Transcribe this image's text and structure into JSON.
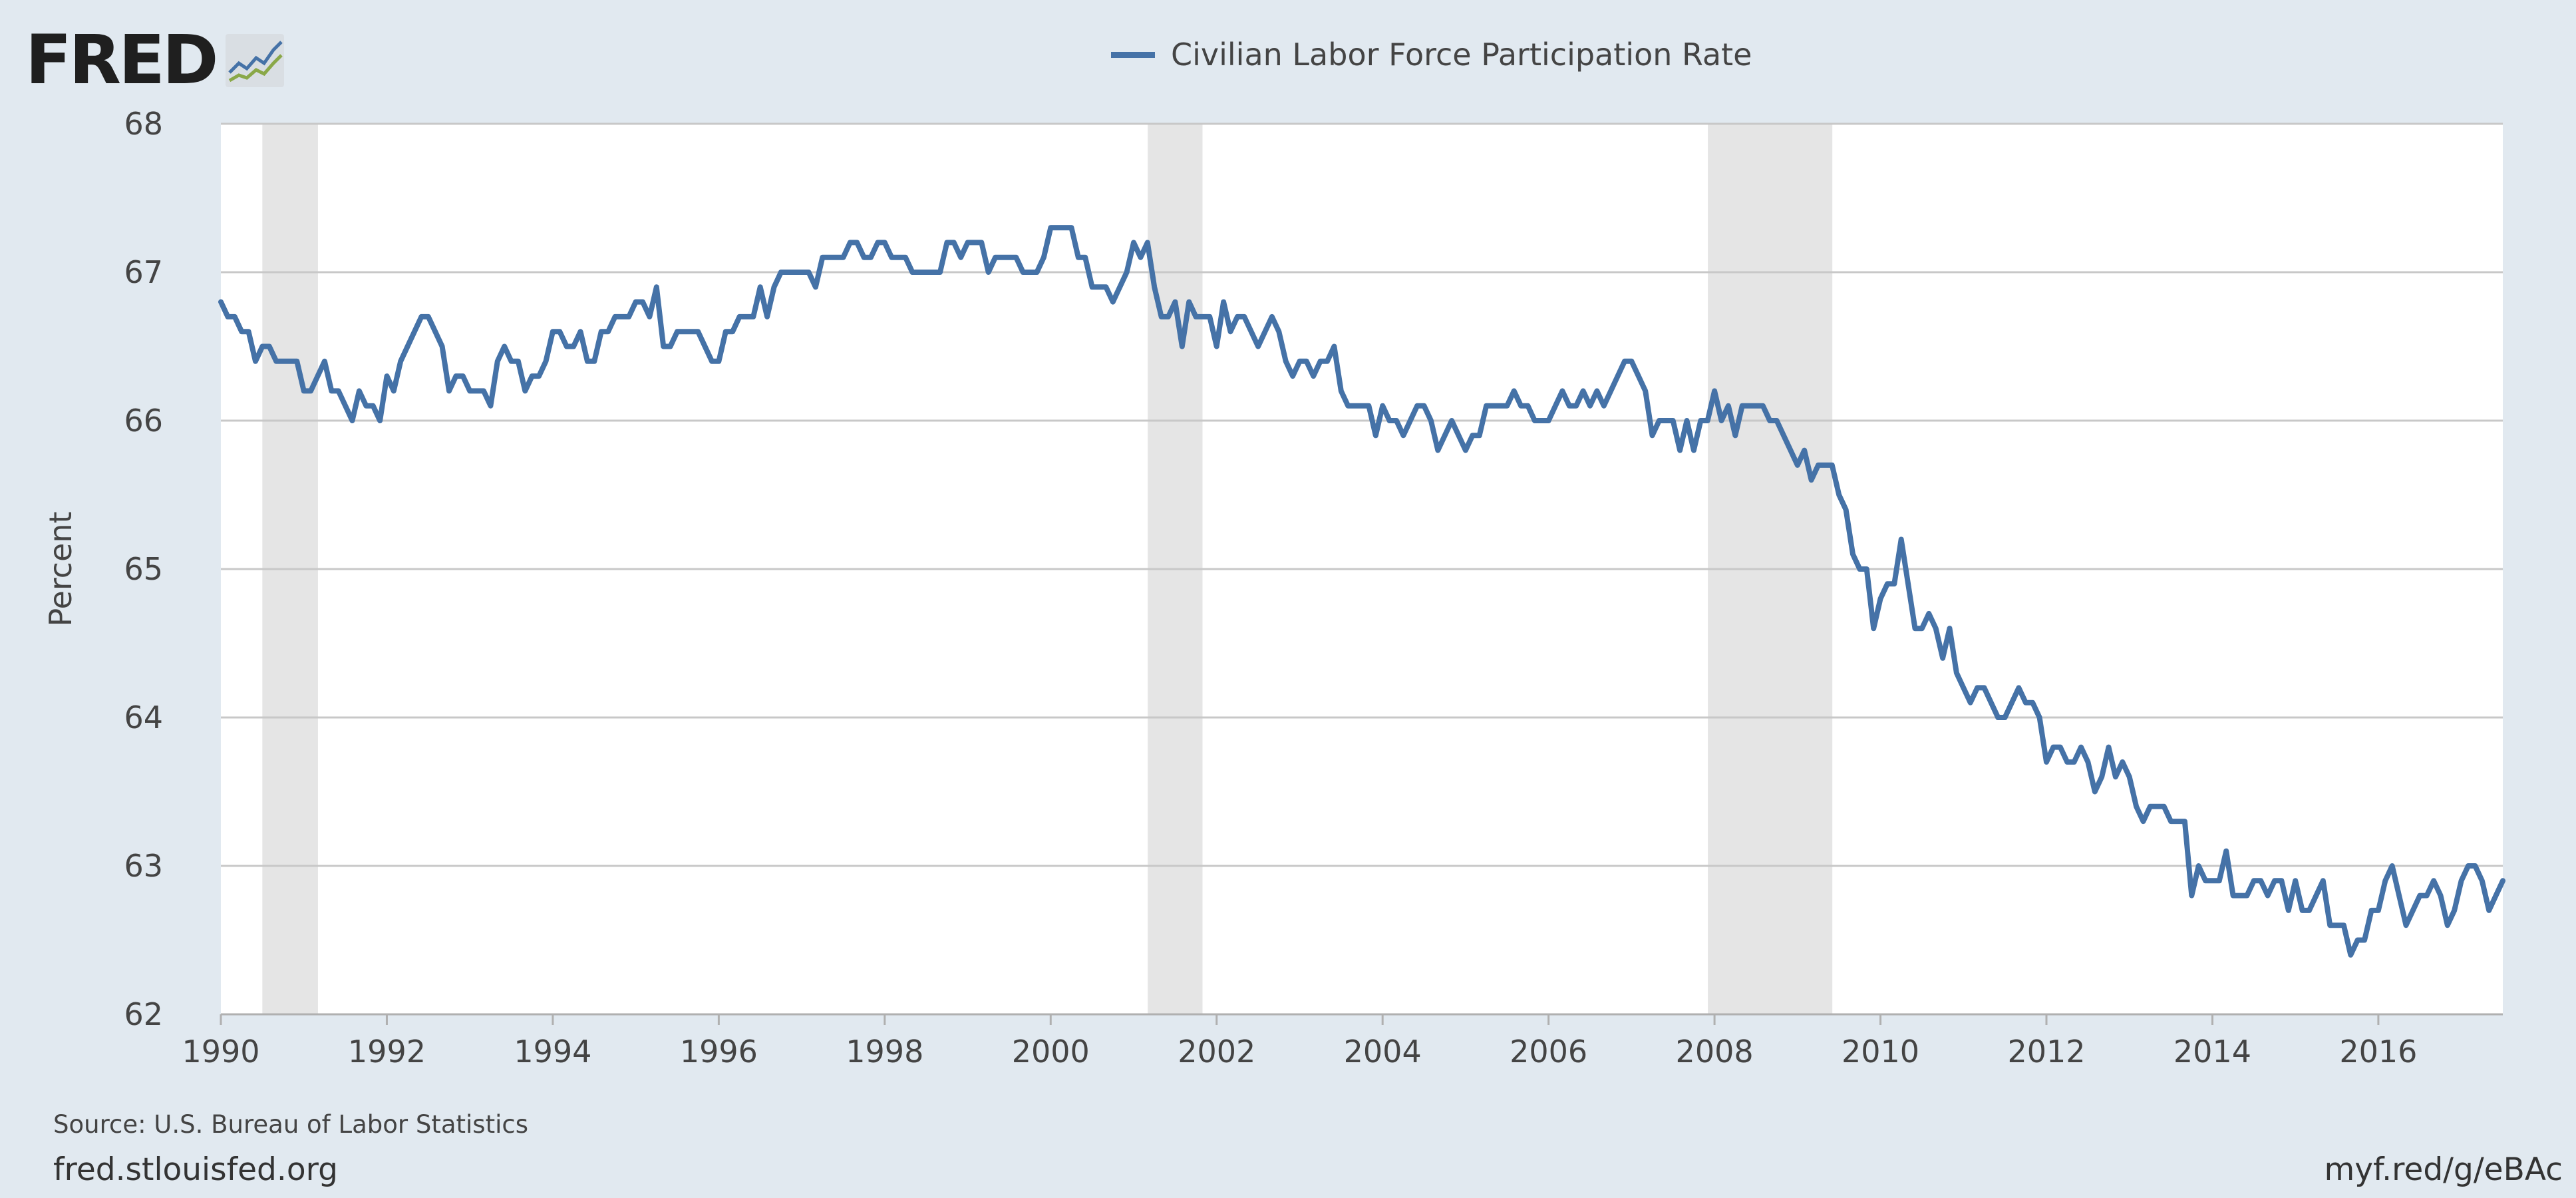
{
  "logo": {
    "text": "FRED"
  },
  "footer": {
    "source": "Source: U.S. Bureau of Labor Statistics",
    "site": "fred.stlouisfed.org",
    "short_url": "myf.red/g/eBAc"
  },
  "colors": {
    "background": "#e1e9f0",
    "series": "#4572a7",
    "recession": "#e5e5e5",
    "grid": "#c8c8c8"
  },
  "chart_data": {
    "type": "line",
    "title": "",
    "xlabel": "",
    "ylabel": "Percent",
    "xlim": [
      1990.0,
      2017.5
    ],
    "ylim": [
      62,
      68
    ],
    "y_ticks": [
      62,
      63,
      64,
      65,
      66,
      67,
      68
    ],
    "x_ticks": [
      1990,
      1992,
      1994,
      1996,
      1998,
      2000,
      2002,
      2004,
      2006,
      2008,
      2010,
      2012,
      2014,
      2016
    ],
    "grid": true,
    "legend": "top-center",
    "recessions": [
      [
        1990.5,
        1991.17
      ],
      [
        2001.17,
        2001.83
      ],
      [
        2007.92,
        2009.42
      ]
    ],
    "series": [
      {
        "name": "Civilian Labor Force Participation Rate",
        "start": "1990-01",
        "frequency": "monthly",
        "values": [
          66.8,
          66.7,
          66.7,
          66.6,
          66.6,
          66.4,
          66.5,
          66.5,
          66.4,
          66.4,
          66.4,
          66.4,
          66.2,
          66.2,
          66.3,
          66.4,
          66.2,
          66.2,
          66.1,
          66.0,
          66.2,
          66.1,
          66.1,
          66.0,
          66.3,
          66.2,
          66.4,
          66.5,
          66.6,
          66.7,
          66.7,
          66.6,
          66.5,
          66.2,
          66.3,
          66.3,
          66.2,
          66.2,
          66.2,
          66.1,
          66.4,
          66.5,
          66.4,
          66.4,
          66.2,
          66.3,
          66.3,
          66.4,
          66.6,
          66.6,
          66.5,
          66.5,
          66.6,
          66.4,
          66.4,
          66.6,
          66.6,
          66.7,
          66.7,
          66.7,
          66.8,
          66.8,
          66.7,
          66.9,
          66.5,
          66.5,
          66.6,
          66.6,
          66.6,
          66.6,
          66.5,
          66.4,
          66.4,
          66.6,
          66.6,
          66.7,
          66.7,
          66.7,
          66.9,
          66.7,
          66.9,
          67.0,
          67.0,
          67.0,
          67.0,
          67.0,
          66.9,
          67.1,
          67.1,
          67.1,
          67.1,
          67.2,
          67.2,
          67.1,
          67.1,
          67.2,
          67.2,
          67.1,
          67.1,
          67.1,
          67.0,
          67.0,
          67.0,
          67.0,
          67.0,
          67.2,
          67.2,
          67.1,
          67.2,
          67.2,
          67.2,
          67.0,
          67.1,
          67.1,
          67.1,
          67.1,
          67.0,
          67.0,
          67.0,
          67.1,
          67.3,
          67.3,
          67.3,
          67.3,
          67.1,
          67.1,
          66.9,
          66.9,
          66.9,
          66.8,
          66.9,
          67.0,
          67.2,
          67.1,
          67.2,
          66.9,
          66.7,
          66.7,
          66.8,
          66.5,
          66.8,
          66.7,
          66.7,
          66.7,
          66.5,
          66.8,
          66.6,
          66.7,
          66.7,
          66.6,
          66.5,
          66.6,
          66.7,
          66.6,
          66.4,
          66.3,
          66.4,
          66.4,
          66.3,
          66.4,
          66.4,
          66.5,
          66.2,
          66.1,
          66.1,
          66.1,
          66.1,
          65.9,
          66.1,
          66.0,
          66.0,
          65.9,
          66.0,
          66.1,
          66.1,
          66.0,
          65.8,
          65.9,
          66.0,
          65.9,
          65.8,
          65.9,
          65.9,
          66.1,
          66.1,
          66.1,
          66.1,
          66.2,
          66.1,
          66.1,
          66.0,
          66.0,
          66.0,
          66.1,
          66.2,
          66.1,
          66.1,
          66.2,
          66.1,
          66.2,
          66.1,
          66.2,
          66.3,
          66.4,
          66.4,
          66.3,
          66.2,
          65.9,
          66.0,
          66.0,
          66.0,
          65.8,
          66.0,
          65.8,
          66.0,
          66.0,
          66.2,
          66.0,
          66.1,
          65.9,
          66.1,
          66.1,
          66.1,
          66.1,
          66.0,
          66.0,
          65.9,
          65.8,
          65.7,
          65.8,
          65.6,
          65.7,
          65.7,
          65.7,
          65.5,
          65.4,
          65.1,
          65.0,
          65.0,
          64.6,
          64.8,
          64.9,
          64.9,
          65.2,
          64.9,
          64.6,
          64.6,
          64.7,
          64.6,
          64.4,
          64.6,
          64.3,
          64.2,
          64.1,
          64.2,
          64.2,
          64.1,
          64.0,
          64.0,
          64.1,
          64.2,
          64.1,
          64.1,
          64.0,
          63.7,
          63.8,
          63.8,
          63.7,
          63.7,
          63.8,
          63.7,
          63.5,
          63.6,
          63.8,
          63.6,
          63.7,
          63.6,
          63.4,
          63.3,
          63.4,
          63.4,
          63.4,
          63.3,
          63.3,
          63.3,
          62.8,
          63.0,
          62.9,
          62.9,
          62.9,
          63.1,
          62.8,
          62.8,
          62.8,
          62.9,
          62.9,
          62.8,
          62.9,
          62.9,
          62.7,
          62.9,
          62.7,
          62.7,
          62.8,
          62.9,
          62.6,
          62.6,
          62.6,
          62.4,
          62.5,
          62.5,
          62.7,
          62.7,
          62.9,
          63.0,
          62.8,
          62.6,
          62.7,
          62.8,
          62.8,
          62.9,
          62.8,
          62.6,
          62.7,
          62.9,
          63.0,
          63.0,
          62.9,
          62.7,
          62.8,
          62.9
        ]
      }
    ]
  }
}
